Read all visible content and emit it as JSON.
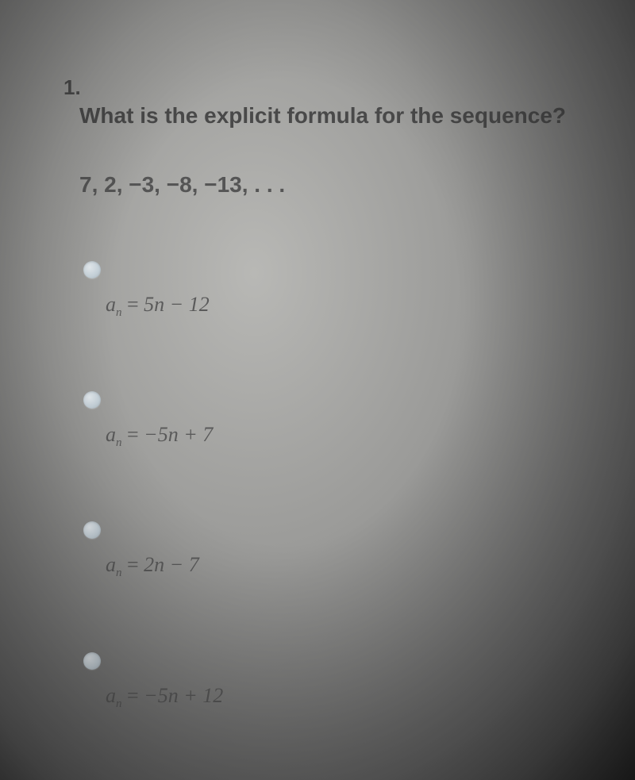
{
  "question": {
    "number": "1.",
    "prompt": "What is the explicit formula for the sequence?",
    "sequence": "7, 2, −3, −8, −13, . . .",
    "options": [
      {
        "var": "a",
        "sub": "n",
        "eq": "=",
        "rhs": "5n − 12"
      },
      {
        "var": "a",
        "sub": "n",
        "eq": "=",
        "rhs": "−5n + 7"
      },
      {
        "var": "a",
        "sub": "n",
        "eq": "=",
        "rhs": "2n − 7"
      },
      {
        "var": "a",
        "sub": "n",
        "eq": "=",
        "rhs": "−5n + 12"
      }
    ]
  },
  "style": {
    "text_color": "#494949",
    "formula_color": "#5a5a5a",
    "radio_bg": "#c8d4dc",
    "prompt_fontsize": 28,
    "formula_fontsize": 26
  }
}
